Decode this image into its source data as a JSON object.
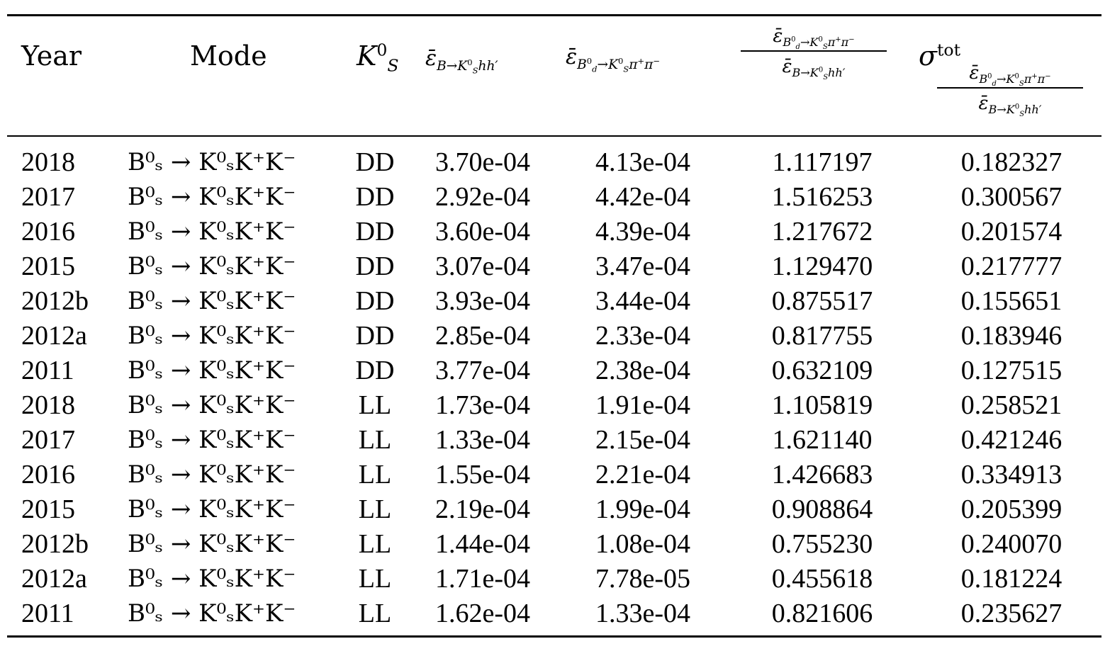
{
  "headers": {
    "year": "Year",
    "mode": "Mode",
    "ks": "K",
    "eff_b": "ε̄",
    "eff_bd": "ε̄",
    "ratio": "ε̄",
    "sigma": "σ",
    "sigma_sup": "tot"
  },
  "rows": [
    {
      "year": "2018",
      "mode": "B⁰ₛ → K⁰ₛK⁺K⁻",
      "ks": "DD",
      "eff_b": "3.70e-04",
      "eff_bd": "4.13e-04",
      "ratio": "1.117197",
      "sigma": "0.182327"
    },
    {
      "year": "2017",
      "mode": "B⁰ₛ → K⁰ₛK⁺K⁻",
      "ks": "DD",
      "eff_b": "2.92e-04",
      "eff_bd": "4.42e-04",
      "ratio": "1.516253",
      "sigma": "0.300567"
    },
    {
      "year": "2016",
      "mode": "B⁰ₛ → K⁰ₛK⁺K⁻",
      "ks": "DD",
      "eff_b": "3.60e-04",
      "eff_bd": "4.39e-04",
      "ratio": "1.217672",
      "sigma": "0.201574"
    },
    {
      "year": "2015",
      "mode": "B⁰ₛ → K⁰ₛK⁺K⁻",
      "ks": "DD",
      "eff_b": "3.07e-04",
      "eff_bd": "3.47e-04",
      "ratio": "1.129470",
      "sigma": "0.217777"
    },
    {
      "year": "2012b",
      "mode": "B⁰ₛ → K⁰ₛK⁺K⁻",
      "ks": "DD",
      "eff_b": "3.93e-04",
      "eff_bd": "3.44e-04",
      "ratio": "0.875517",
      "sigma": "0.155651"
    },
    {
      "year": "2012a",
      "mode": "B⁰ₛ → K⁰ₛK⁺K⁻",
      "ks": "DD",
      "eff_b": "2.85e-04",
      "eff_bd": "2.33e-04",
      "ratio": "0.817755",
      "sigma": "0.183946"
    },
    {
      "year": "2011",
      "mode": "B⁰ₛ → K⁰ₛK⁺K⁻",
      "ks": "DD",
      "eff_b": "3.77e-04",
      "eff_bd": "2.38e-04",
      "ratio": "0.632109",
      "sigma": "0.127515"
    },
    {
      "year": "2018",
      "mode": "B⁰ₛ → K⁰ₛK⁺K⁻",
      "ks": "LL",
      "eff_b": "1.73e-04",
      "eff_bd": "1.91e-04",
      "ratio": "1.105819",
      "sigma": "0.258521"
    },
    {
      "year": "2017",
      "mode": "B⁰ₛ → K⁰ₛK⁺K⁻",
      "ks": "LL",
      "eff_b": "1.33e-04",
      "eff_bd": "2.15e-04",
      "ratio": "1.621140",
      "sigma": "0.421246"
    },
    {
      "year": "2016",
      "mode": "B⁰ₛ → K⁰ₛK⁺K⁻",
      "ks": "LL",
      "eff_b": "1.55e-04",
      "eff_bd": "2.21e-04",
      "ratio": "1.426683",
      "sigma": "0.334913"
    },
    {
      "year": "2015",
      "mode": "B⁰ₛ → K⁰ₛK⁺K⁻",
      "ks": "LL",
      "eff_b": "2.19e-04",
      "eff_bd": "1.99e-04",
      "ratio": "0.908864",
      "sigma": "0.205399"
    },
    {
      "year": "2012b",
      "mode": "B⁰ₛ → K⁰ₛK⁺K⁻",
      "ks": "LL",
      "eff_b": "1.44e-04",
      "eff_bd": "1.08e-04",
      "ratio": "0.755230",
      "sigma": "0.240070"
    },
    {
      "year": "2012a",
      "mode": "B⁰ₛ → K⁰ₛK⁺K⁻",
      "ks": "LL",
      "eff_b": "1.71e-04",
      "eff_bd": "7.78e-05",
      "ratio": "0.455618",
      "sigma": "0.181224"
    },
    {
      "year": "2011",
      "mode": "B⁰ₛ → K⁰ₛK⁺K⁻",
      "ks": "LL",
      "eff_b": "1.62e-04",
      "eff_bd": "1.33e-04",
      "ratio": "0.821606",
      "sigma": "0.235627"
    }
  ]
}
